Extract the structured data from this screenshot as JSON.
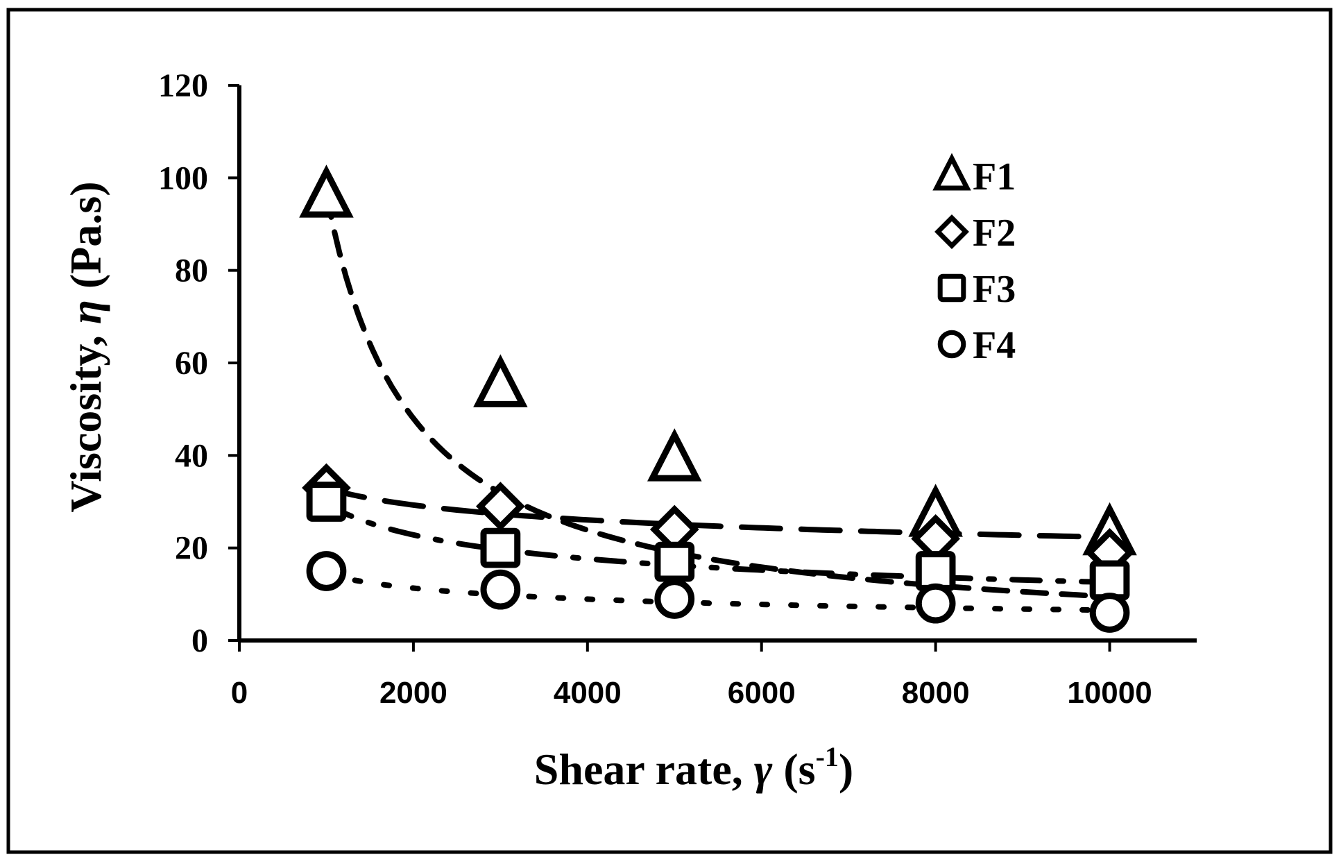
{
  "chart_data": {
    "type": "scatter",
    "xlabel": {
      "prefix": "Shear rate, ",
      "symbol": "γ",
      "unit_open": " (s",
      "sup": "-1",
      "unit_close": ")"
    },
    "ylabel": {
      "prefix": "Viscosity, ",
      "symbol": "η",
      "unit": " (Pa.s)"
    },
    "xlim": [
      0,
      11000
    ],
    "ylim": [
      0,
      120
    ],
    "xticks": [
      {
        "value": 0,
        "label": "0"
      },
      {
        "value": 2000,
        "label": "2000"
      },
      {
        "value": 4000,
        "label": "4000"
      },
      {
        "value": 6000,
        "label": "6000"
      },
      {
        "value": 8000,
        "label": "8000"
      },
      {
        "value": 10000,
        "label": "10000"
      }
    ],
    "yticks": [
      {
        "value": 0,
        "label": "0"
      },
      {
        "value": 20,
        "label": "20"
      },
      {
        "value": 40,
        "label": "40"
      },
      {
        "value": 60,
        "label": "60"
      },
      {
        "value": 80,
        "label": "80"
      },
      {
        "value": 100,
        "label": "100"
      },
      {
        "value": 120,
        "label": "120"
      }
    ],
    "grid": false,
    "legend_position": "top-right",
    "x": [
      1000,
      3000,
      5000,
      8000,
      10000
    ],
    "series": [
      {
        "name": "F1",
        "marker": "triangle",
        "values": [
          96,
          55,
          39,
          27,
          23
        ],
        "trend": {
          "type": "power",
          "a": 102000,
          "b": -1.008,
          "dash": "dash"
        }
      },
      {
        "name": "F2",
        "marker": "diamond",
        "values": [
          33,
          29,
          24,
          22,
          19
        ],
        "trend": {
          "type": "power",
          "a": 105,
          "b": -0.168,
          "dash": "long-dash"
        }
      },
      {
        "name": "F3",
        "marker": "square",
        "values": [
          30,
          20,
          17,
          15,
          13
        ],
        "trend": {
          "type": "power",
          "a": 380,
          "b": -0.37,
          "dash": "dash-dot"
        }
      },
      {
        "name": "F4",
        "marker": "circle",
        "values": [
          15,
          11,
          9,
          8,
          6
        ],
        "trend": {
          "type": "power",
          "a": 150,
          "b": -0.34,
          "dash": "dot"
        }
      }
    ]
  }
}
